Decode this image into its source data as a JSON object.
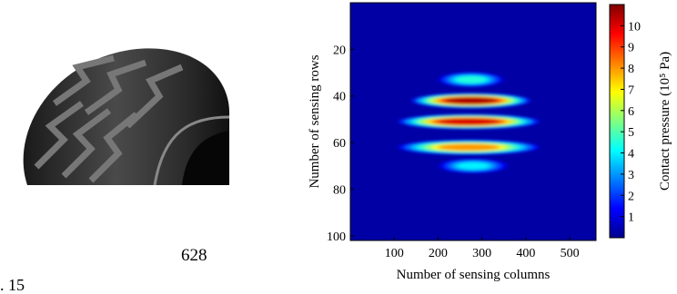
{
  "stray_text": {
    "a": "628",
    "b": ". 15"
  },
  "photo": {
    "icon": "tractor-tire-photo-icon"
  },
  "chart_data": {
    "type": "heatmap",
    "title": "",
    "xlabel": "Number of sensing columns",
    "ylabel": "Number of sensing rows",
    "colorbar_label": "Contact pressure (10⁵ Pa)",
    "xlim": [
      0,
      560
    ],
    "ylim": [
      0,
      102
    ],
    "x_ticks": [
      100,
      200,
      300,
      400,
      500
    ],
    "y_ticks": [
      20,
      40,
      60,
      80,
      100
    ],
    "colorbar_ticks": [
      1,
      2,
      3,
      4,
      5,
      6,
      7,
      8,
      9,
      10
    ],
    "colorbar_range": [
      0,
      11
    ],
    "colormap": "jet",
    "background_value": 0.4,
    "contact_bands": [
      {
        "row": 33,
        "x_start": 200,
        "x_end": 350,
        "peak": 4.5
      },
      {
        "row": 42,
        "x_start": 140,
        "x_end": 410,
        "peak": 10.5
      },
      {
        "row": 51,
        "x_start": 110,
        "x_end": 430,
        "peak": 10.0
      },
      {
        "row": 62,
        "x_start": 110,
        "x_end": 430,
        "peak": 8.0
      },
      {
        "row": 70,
        "x_start": 200,
        "x_end": 360,
        "peak": 4.0
      }
    ]
  }
}
